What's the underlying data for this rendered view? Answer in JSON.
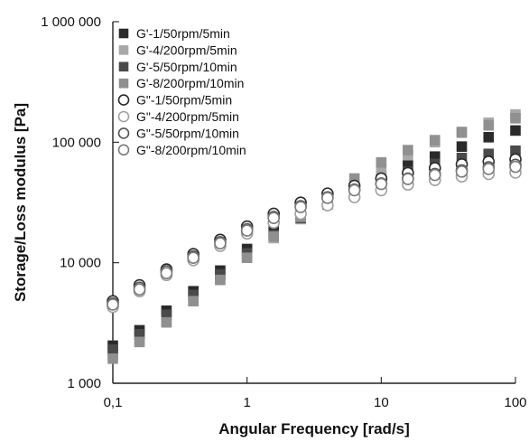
{
  "chart_data": {
    "type": "scatter",
    "title": "",
    "xlabel": "Angular Frequency [rad/s]",
    "ylabel": "Storage/Loss modulus [Pa]",
    "xscale": "log",
    "yscale": "log",
    "xlim": [
      0.1,
      100
    ],
    "ylim": [
      1000,
      1000000
    ],
    "xticks": [
      {
        "value": 0.1,
        "label": "0,1"
      },
      {
        "value": 1,
        "label": "1"
      },
      {
        "value": 10,
        "label": "10"
      },
      {
        "value": 100,
        "label": "100"
      }
    ],
    "yticks": [
      {
        "value": 1000,
        "label": "1 000"
      },
      {
        "value": 10000,
        "label": "10 000"
      },
      {
        "value": 100000,
        "label": "100 000"
      },
      {
        "value": 1000000,
        "label": "1 000 000"
      }
    ],
    "grid": false,
    "legend_position": "top-left",
    "x": [
      0.1,
      0.158,
      0.251,
      0.398,
      0.631,
      1,
      1.58,
      2.51,
      3.98,
      6.31,
      10,
      15.8,
      25.1,
      39.8,
      63.1,
      100
    ],
    "series": [
      {
        "name": "G'-1/50rpm/5min",
        "marker": "filled-square",
        "color": "#2a2a2a",
        "values": [
          2050,
          2750,
          4000,
          5800,
          8600,
          13000,
          18500,
          25000,
          32000,
          42000,
          52000,
          64000,
          76000,
          92000,
          110000,
          125000
        ]
      },
      {
        "name": "G'-4/200rpm/5min",
        "marker": "filled-square",
        "color": "#a8a8a8",
        "values": [
          1700,
          2300,
          3300,
          4900,
          7300,
          11000,
          16000,
          23000,
          32000,
          45000,
          60000,
          78000,
          100000,
          122000,
          145000,
          170000
        ]
      },
      {
        "name": "G'-5/50rpm/10min",
        "marker": "filled-square",
        "color": "#4a4a4a",
        "values": [
          1900,
          2550,
          3700,
          5400,
          8000,
          12000,
          17000,
          23500,
          30500,
          39000,
          48000,
          57000,
          66000,
          74000,
          80000,
          85000
        ]
      },
      {
        "name": "G'-8/200rpm/10min",
        "marker": "filled-square",
        "color": "#909090",
        "values": [
          1600,
          2200,
          3200,
          4800,
          7200,
          11000,
          16500,
          24000,
          35000,
          50000,
          68000,
          86000,
          104000,
          120000,
          138000,
          158000
        ]
      },
      {
        "name": "G\"-1/50rpm/5min",
        "marker": "open-circle",
        "color": "#2a2a2a",
        "values": [
          4800,
          6500,
          8800,
          11800,
          15500,
          20000,
          25500,
          31500,
          37500,
          43500,
          50000,
          55500,
          61000,
          65500,
          69000,
          72000
        ]
      },
      {
        "name": "G\"-4/200rpm/5min",
        "marker": "open-circle",
        "color": "#a0a0a0",
        "values": [
          4300,
          5800,
          7900,
          10500,
          13800,
          17500,
          21500,
          25500,
          30000,
          35000,
          40000,
          44500,
          48500,
          52000,
          54500,
          56000
        ]
      },
      {
        "name": "G\"-5/50rpm/10min",
        "marker": "open-circle",
        "color": "#555555",
        "values": [
          4600,
          6200,
          8500,
          11300,
          14800,
          19000,
          24000,
          29500,
          35000,
          40500,
          45500,
          50000,
          54500,
          58500,
          62000,
          65000
        ]
      },
      {
        "name": "G\"-8/200rpm/10min",
        "marker": "open-circle",
        "color": "#7a7a7a",
        "values": [
          4500,
          6000,
          8200,
          11000,
          14500,
          18500,
          23500,
          29000,
          34500,
          40000,
          45000,
          49500,
          53500,
          57000,
          60000,
          62500
        ]
      }
    ]
  }
}
